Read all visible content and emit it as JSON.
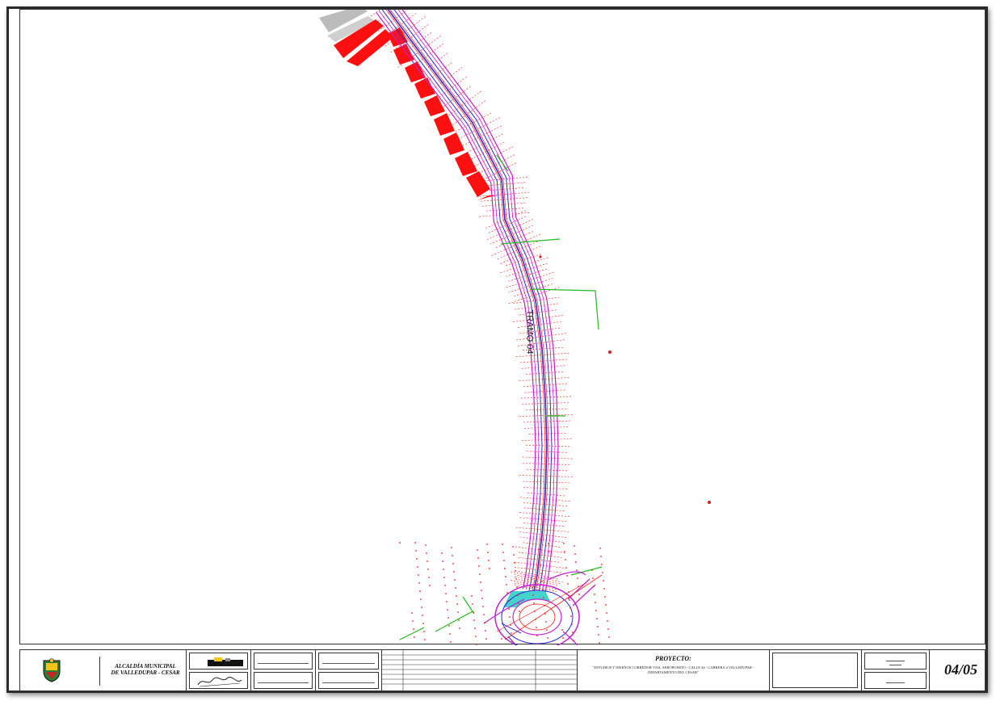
{
  "drawing": {
    "label": "TRAMO 04"
  },
  "title_block": {
    "organization_line1": "ALCALDÍA MUNICIPAL",
    "organization_line2": "DE VALLEDUPAR - CESAR",
    "project_heading": "PROYECTO:",
    "project_description": "\"ESTUDIOS Y DISEÑOS CORREDOR VIAL AEROPUERTO - CALLE 44 - CARRERA 4 VALLEDUPAR - DEPARTAMENTO DEL CESAR\"",
    "sheet_number": "04/05"
  },
  "colors": {
    "road_blue": "#2b2bd8",
    "road_magenta": "#c020d0",
    "red_annotations": "#ff1a1a",
    "green_lines": "#22bb22",
    "buildings": "#ff1010",
    "roundabout_island": "#2fd0c8"
  }
}
